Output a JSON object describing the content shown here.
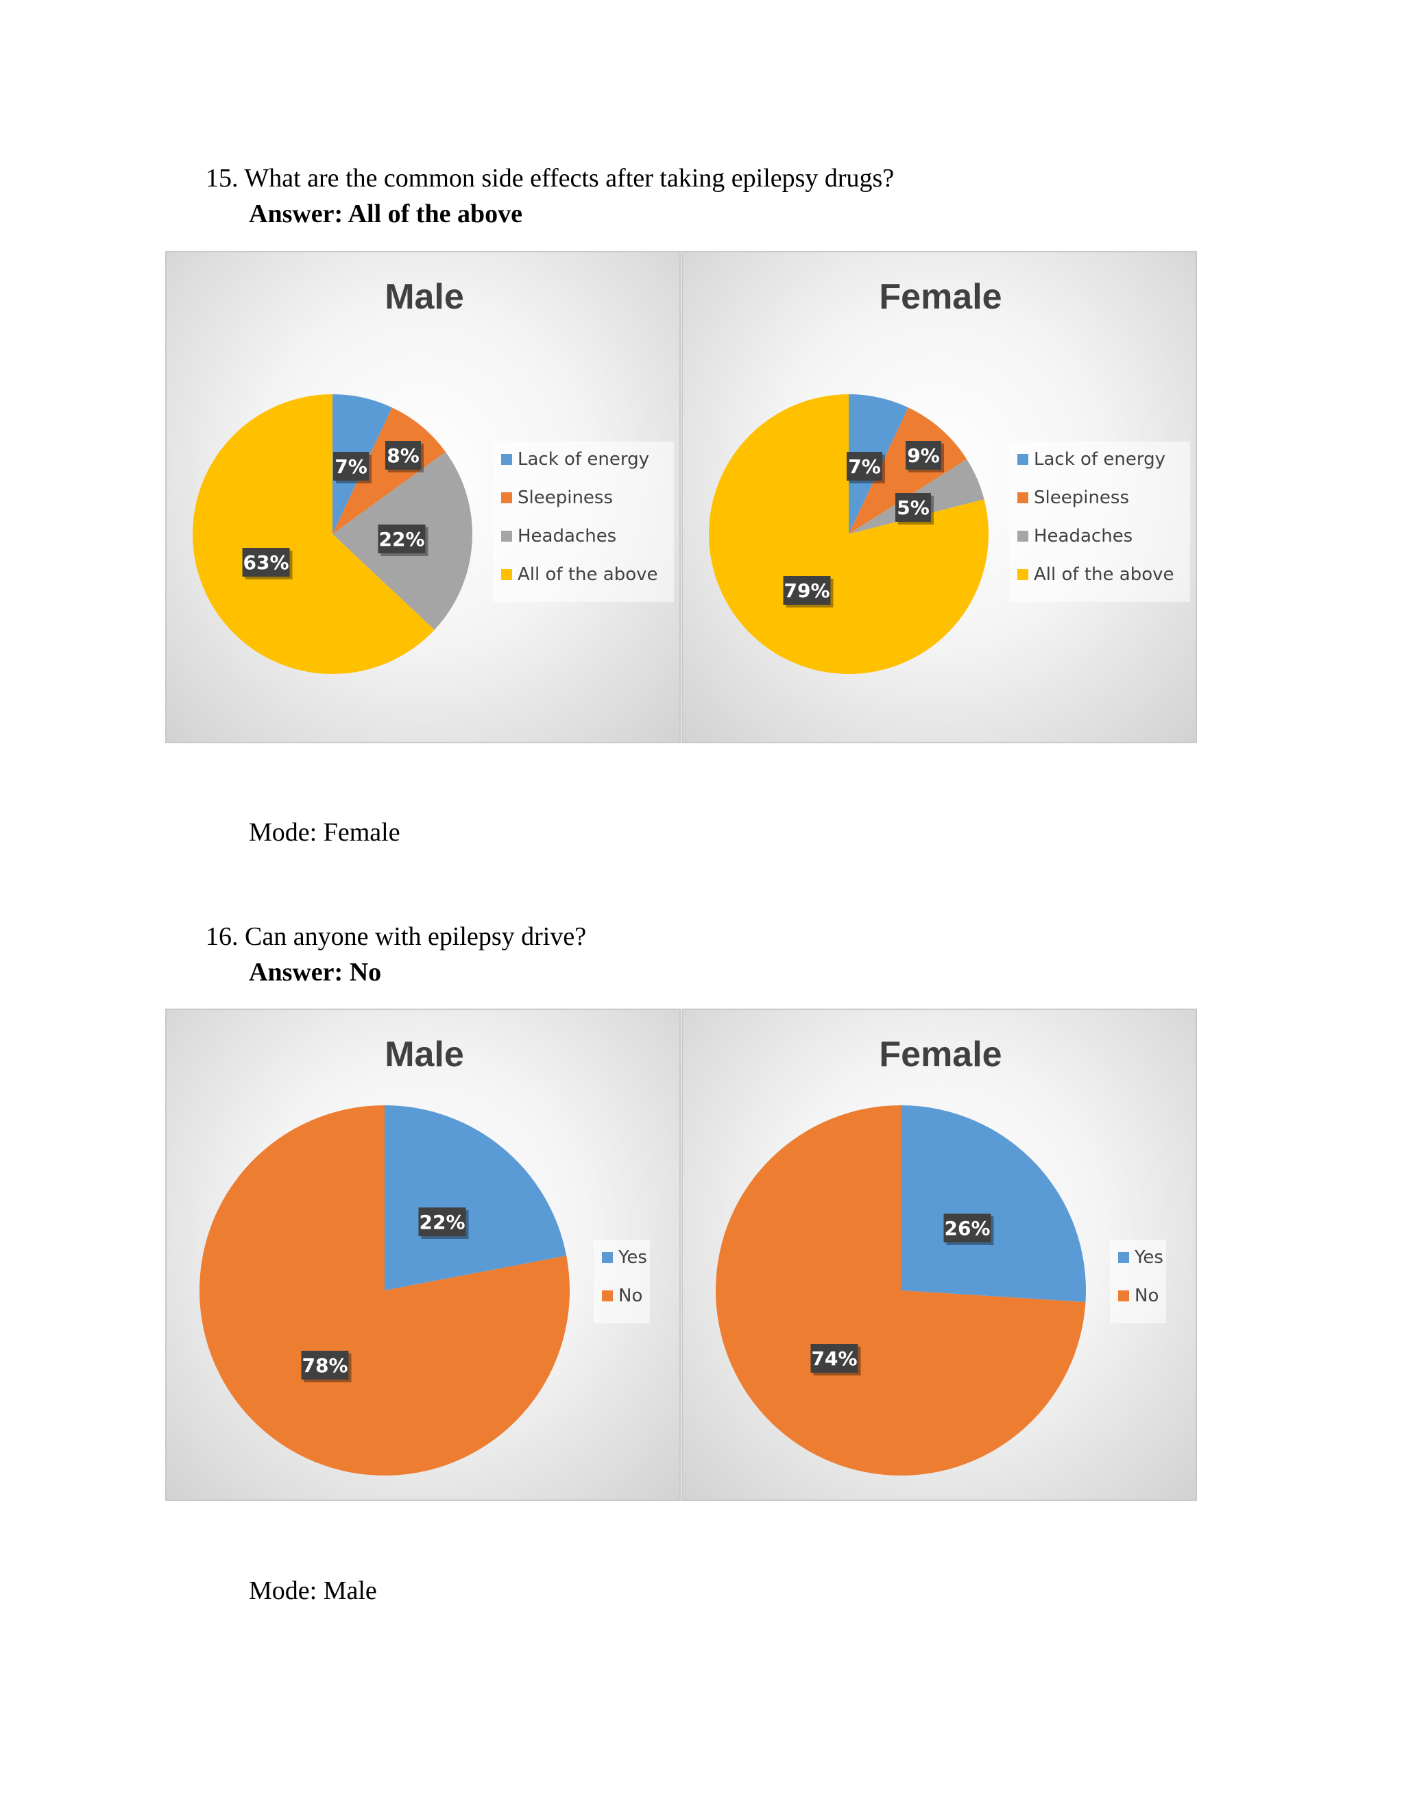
{
  "questions": [
    {
      "number": "15.",
      "text": "What are the common side effects after taking epilepsy drugs?",
      "answer": "Answer: All of the above",
      "mode": "Mode: Female"
    },
    {
      "number": "16.",
      "text": "Can anyone with epilepsy drive?",
      "answer": "Answer: No",
      "mode": "Mode: Male"
    }
  ],
  "colors": {
    "blue": "#5B9BD5",
    "orange": "#ED7D31",
    "gray": "#A5A5A5",
    "gold": "#FFC000",
    "label_bg": "#404040"
  },
  "chart_data": [
    {
      "type": "pie",
      "title": "Male",
      "categories": [
        "Lack of energy",
        "Sleepiness",
        "Headaches",
        "All of the above"
      ],
      "values": [
        7,
        8,
        22,
        63
      ],
      "data_labels": [
        "7%",
        "8%",
        "22%",
        "63%"
      ],
      "colors": [
        "#5B9BD5",
        "#ED7D31",
        "#A5A5A5",
        "#FFC000"
      ],
      "legend": "right"
    },
    {
      "type": "pie",
      "title": "Female",
      "categories": [
        "Lack of energy",
        "Sleepiness",
        "Headaches",
        "All of the above"
      ],
      "values": [
        7,
        9,
        5,
        79
      ],
      "data_labels": [
        "7%",
        "9%",
        "5%",
        "79%"
      ],
      "colors": [
        "#5B9BD5",
        "#ED7D31",
        "#A5A5A5",
        "#FFC000"
      ],
      "legend": "right"
    },
    {
      "type": "pie",
      "title": "Male",
      "categories": [
        "Yes",
        "No"
      ],
      "values": [
        22,
        78
      ],
      "data_labels": [
        "22%",
        "78%"
      ],
      "colors": [
        "#5B9BD5",
        "#ED7D31"
      ],
      "legend": "right"
    },
    {
      "type": "pie",
      "title": "Female",
      "categories": [
        "Yes",
        "No"
      ],
      "values": [
        26,
        74
      ],
      "data_labels": [
        "26%",
        "74%"
      ],
      "colors": [
        "#5B9BD5",
        "#ED7D31"
      ],
      "legend": "right"
    }
  ]
}
